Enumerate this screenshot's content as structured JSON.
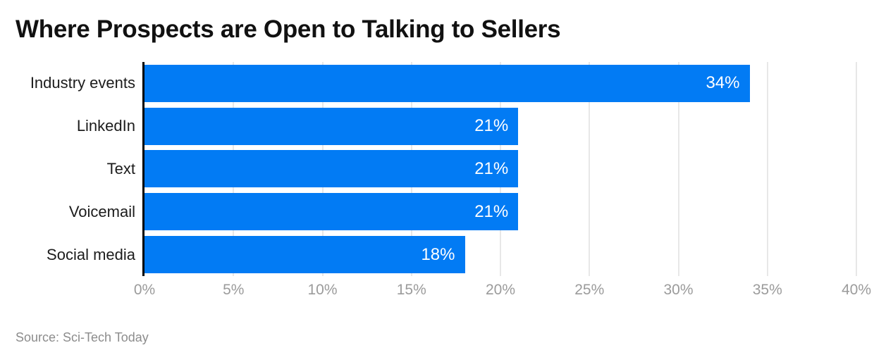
{
  "title": "Where Prospects are Open to Talking to Sellers",
  "source_note": "Source: Sci-Tech Today",
  "colors": {
    "bar": "#027bf4",
    "title_text": "#111111",
    "category_text": "#1c1c1c",
    "tick_text": "#9b9b9b",
    "gridline": "#e7e7e7",
    "value_label": "#ffffff",
    "axis_line": "#000000",
    "source_text": "#8c8c8c",
    "background": "#ffffff"
  },
  "chart_data": {
    "type": "bar",
    "orientation": "horizontal",
    "title": "Where Prospects are Open to Talking to Sellers",
    "categories": [
      "Industry events",
      "LinkedIn",
      "Text",
      "Voicemail",
      "Social media"
    ],
    "values": [
      34,
      21,
      21,
      21,
      18
    ],
    "value_labels": [
      "34%",
      "21%",
      "21%",
      "21%",
      "18%"
    ],
    "xlabel": "",
    "ylabel": "",
    "xlim": [
      0,
      40
    ],
    "xtick_values": [
      0,
      5,
      10,
      15,
      20,
      25,
      30,
      35,
      40
    ],
    "xtick_labels": [
      "0%",
      "5%",
      "10%",
      "15%",
      "20%",
      "25%",
      "30%",
      "35%",
      "40%"
    ],
    "grid": true,
    "legend": false,
    "value_labels_position": "inside-end",
    "source": "Source: Sci-Tech Today"
  }
}
